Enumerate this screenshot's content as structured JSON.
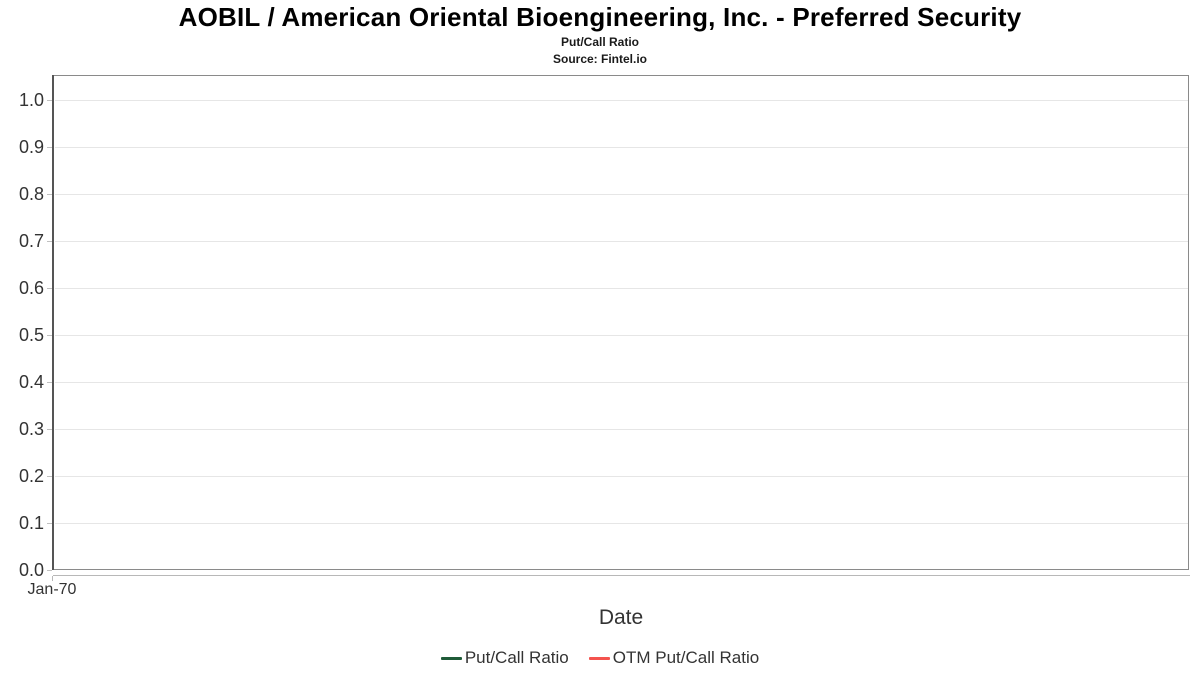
{
  "chart_data": {
    "type": "line",
    "title": "AOBIL / American Oriental Bioengineering, Inc. - Preferred Security",
    "subtitle": "Put/Call Ratio",
    "source": "Source: Fintel.io",
    "xlabel": "Date",
    "ylabel": "",
    "x_tick_labels": [
      "Jan-70"
    ],
    "y_tick_labels": [
      "1.0",
      "0.9",
      "0.8",
      "0.7",
      "0.6",
      "0.5",
      "0.4",
      "0.3",
      "0.2",
      "0.1",
      "0.0"
    ],
    "ylim": [
      0.0,
      1.05
    ],
    "grid": true,
    "legend_position": "bottom-center",
    "series": [
      {
        "name": "Put/Call Ratio",
        "color": "#1f5b38",
        "values": []
      },
      {
        "name": "OTM Put/Call Ratio",
        "color": "#f4534e",
        "values": []
      }
    ]
  },
  "colors": {
    "grid_line": "#e6e6e6",
    "plot_border": "#8a8a8a",
    "y_axis_line": "#555555",
    "x_axis_line": "#b8b8b8",
    "title_text": "#000000",
    "axis_text": "#333333"
  }
}
